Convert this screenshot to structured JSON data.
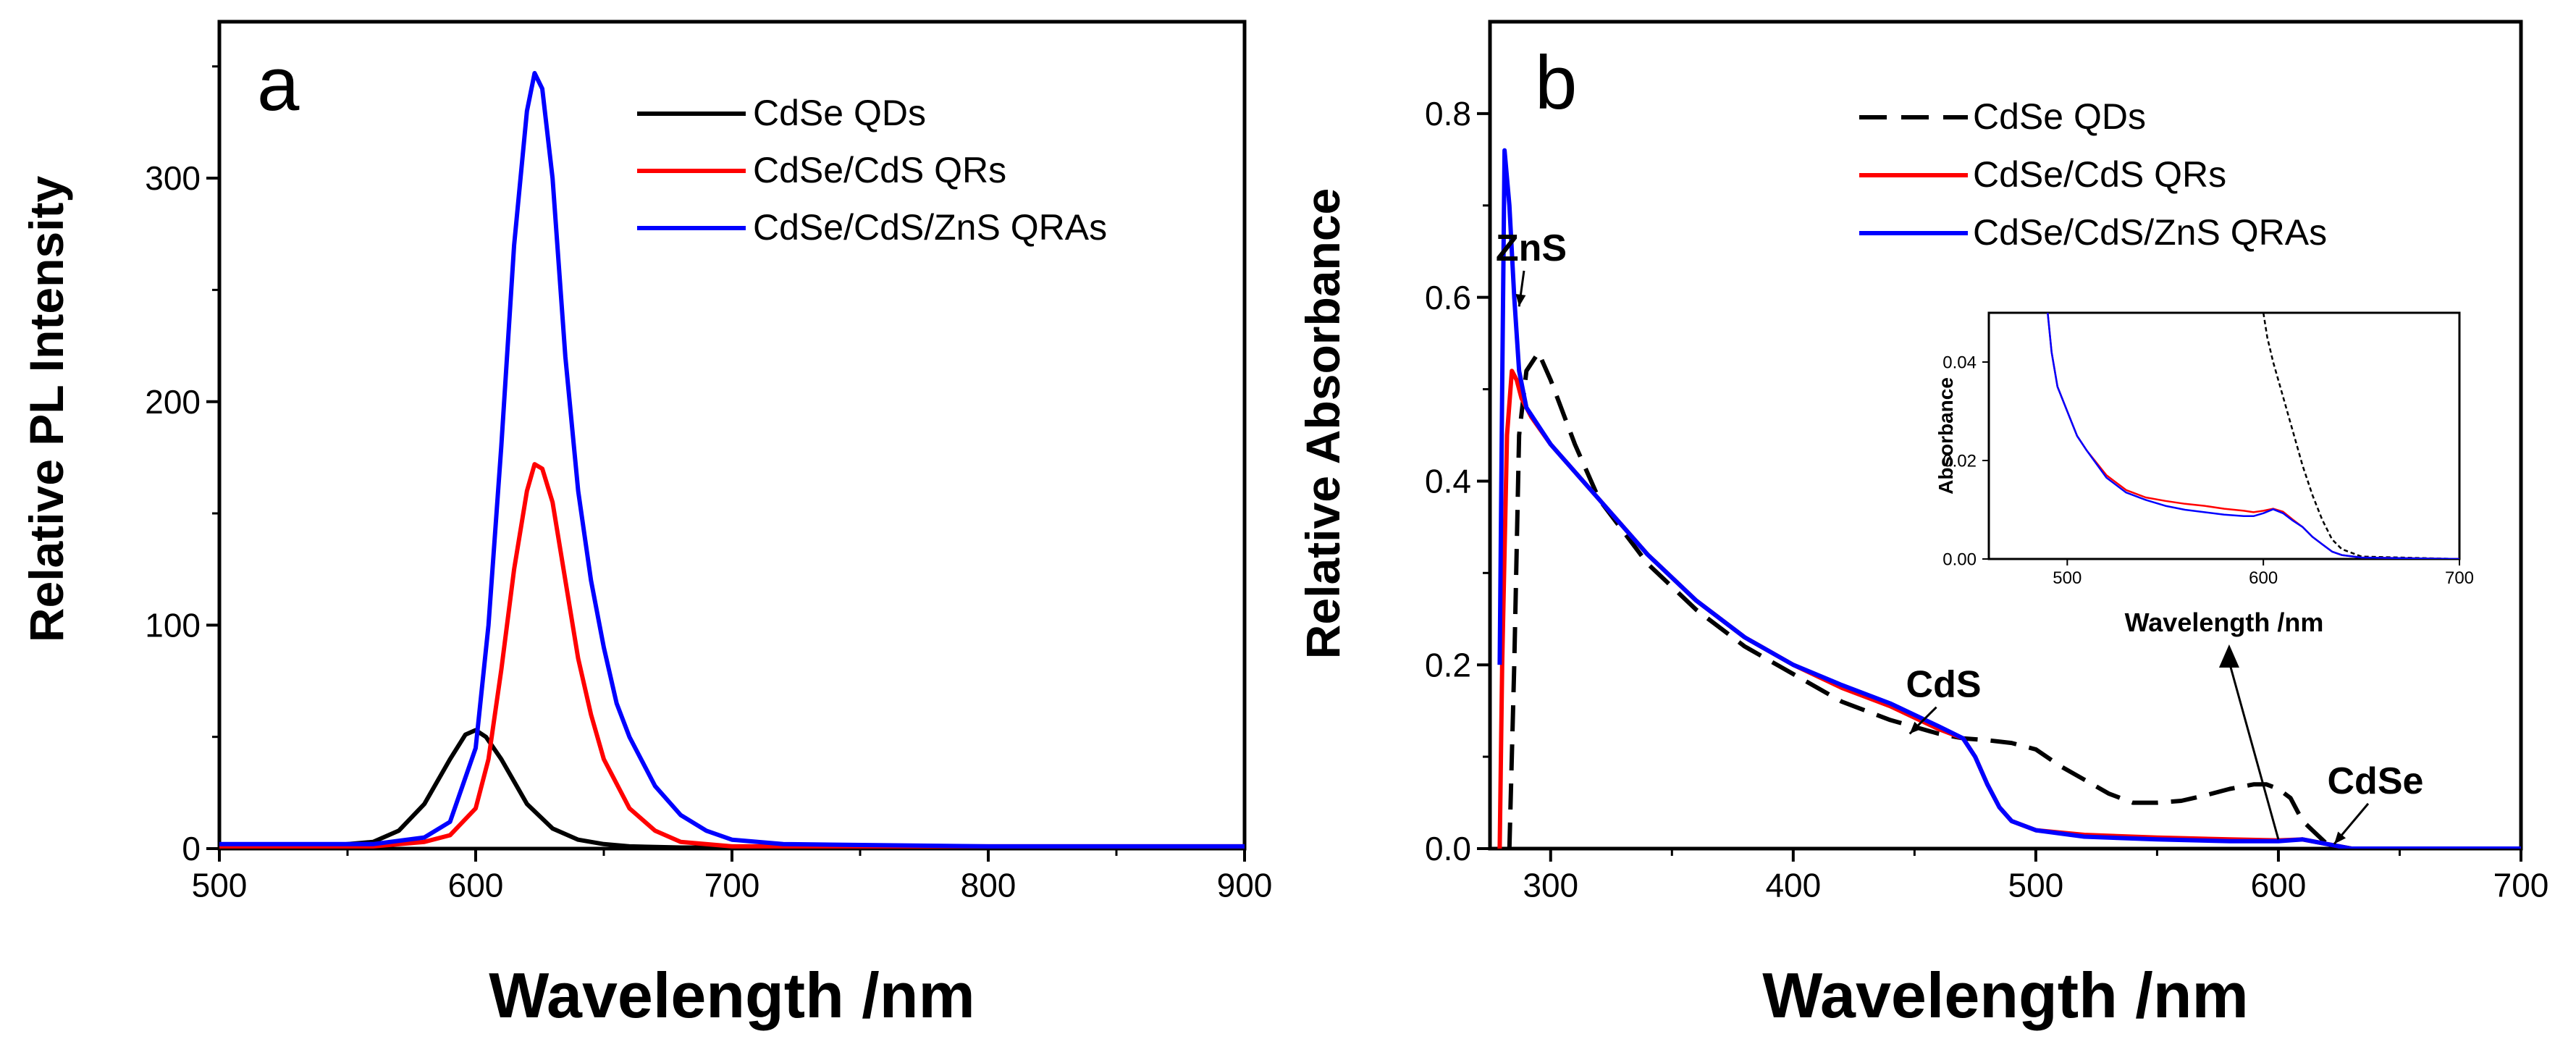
{
  "colors": {
    "black": "#000000",
    "red": "#ff0000",
    "blue": "#0000ff",
    "axis": "#000000"
  },
  "chart_data": [
    {
      "id": "a",
      "type": "line",
      "panel_label": "a",
      "xlabel": "Wavelength /nm",
      "ylabel": "Relative PL Intensity",
      "xlim": [
        500,
        900
      ],
      "ylim": [
        0,
        370
      ],
      "xticks": [
        "500",
        "600",
        "700",
        "800",
        "900"
      ],
      "yticks": [
        "0",
        "100",
        "200",
        "300"
      ],
      "legend": "top-right",
      "series": [
        {
          "name": "CdSe QDs",
          "color": "#000000",
          "dash": false,
          "x": [
            500,
            540,
            560,
            570,
            580,
            590,
            596,
            600,
            604,
            610,
            615,
            620,
            630,
            640,
            650,
            660,
            680,
            700,
            800,
            900
          ],
          "y": [
            1,
            1,
            3,
            8,
            20,
            40,
            51,
            53,
            50,
            40,
            30,
            20,
            9,
            4,
            2,
            1,
            0.5,
            0.5,
            0.5,
            0.5
          ]
        },
        {
          "name": "CdSe/CdS QRs",
          "color": "#ff0000",
          "dash": false,
          "x": [
            500,
            560,
            580,
            590,
            600,
            605,
            610,
            615,
            620,
            623,
            626,
            630,
            635,
            640,
            645,
            650,
            660,
            670,
            680,
            700,
            800,
            900
          ],
          "y": [
            1,
            1,
            3,
            6,
            18,
            40,
            80,
            125,
            160,
            172,
            170,
            155,
            120,
            85,
            60,
            40,
            18,
            8,
            3,
            1,
            1,
            1
          ]
        },
        {
          "name": "CdSe/CdS/ZnS QRAs",
          "color": "#0000ff",
          "dash": false,
          "x": [
            500,
            560,
            580,
            590,
            600,
            605,
            610,
            615,
            620,
            623,
            626,
            630,
            635,
            640,
            645,
            650,
            655,
            660,
            670,
            680,
            690,
            700,
            720,
            800,
            900
          ],
          "y": [
            2,
            2,
            5,
            12,
            45,
            100,
            180,
            270,
            330,
            347,
            340,
            300,
            220,
            160,
            120,
            90,
            65,
            50,
            28,
            15,
            8,
            4,
            2,
            1,
            1
          ]
        }
      ]
    },
    {
      "id": "b",
      "type": "line",
      "panel_label": "b",
      "xlabel": "Wavelength /nm",
      "ylabel": "Relative Absorbance",
      "xlim": [
        275,
        700
      ],
      "ylim": [
        0,
        0.9
      ],
      "xticks": [
        "300",
        "400",
        "500",
        "600",
        "700"
      ],
      "yticks": [
        "0.0",
        "0.2",
        "0.4",
        "0.6",
        "0.8"
      ],
      "legend": "top-right",
      "series": [
        {
          "name": "CdSe QDs",
          "color": "#000000",
          "dash": true,
          "x": [
            283,
            285,
            287,
            290,
            295,
            300,
            310,
            320,
            340,
            360,
            380,
            400,
            420,
            440,
            460,
            470,
            480,
            490,
            500,
            510,
            520,
            530,
            540,
            550,
            560,
            570,
            580,
            590,
            595,
            600,
            605,
            610,
            620,
            630,
            640,
            700
          ],
          "y": [
            0,
            0.2,
            0.45,
            0.52,
            0.54,
            0.51,
            0.44,
            0.38,
            0.31,
            0.26,
            0.22,
            0.19,
            0.16,
            0.14,
            0.125,
            0.12,
            0.118,
            0.115,
            0.108,
            0.09,
            0.075,
            0.06,
            0.05,
            0.05,
            0.052,
            0.058,
            0.065,
            0.07,
            0.07,
            0.065,
            0.055,
            0.03,
            0.005,
            0,
            0,
            0
          ]
        },
        {
          "name": "CdSe/CdS QRs",
          "color": "#ff0000",
          "dash": false,
          "x": [
            279,
            280,
            282,
            284,
            286,
            288,
            292,
            300,
            320,
            340,
            360,
            380,
            400,
            420,
            440,
            460,
            470,
            475,
            480,
            485,
            490,
            500,
            520,
            550,
            580,
            600,
            610,
            620,
            630,
            640,
            700
          ],
          "y": [
            0,
            0.2,
            0.45,
            0.52,
            0.51,
            0.49,
            0.47,
            0.44,
            0.38,
            0.32,
            0.27,
            0.23,
            0.2,
            0.175,
            0.155,
            0.13,
            0.12,
            0.1,
            0.07,
            0.045,
            0.03,
            0.02,
            0.015,
            0.012,
            0.01,
            0.009,
            0.01,
            0.005,
            0,
            0,
            0
          ]
        },
        {
          "name": "CdSe/CdS/ZnS QRAs",
          "color": "#0000ff",
          "dash": false,
          "x": [
            279,
            280,
            281,
            283,
            285,
            287,
            290,
            295,
            300,
            320,
            340,
            360,
            380,
            400,
            420,
            440,
            460,
            470,
            475,
            480,
            485,
            490,
            500,
            520,
            550,
            580,
            600,
            610,
            620,
            630,
            640,
            700
          ],
          "y": [
            0.2,
            0.5,
            0.76,
            0.7,
            0.6,
            0.52,
            0.48,
            0.46,
            0.44,
            0.38,
            0.32,
            0.27,
            0.23,
            0.2,
            0.178,
            0.158,
            0.133,
            0.12,
            0.1,
            0.07,
            0.045,
            0.03,
            0.02,
            0.013,
            0.01,
            0.008,
            0.008,
            0.01,
            0.005,
            0,
            0,
            0
          ]
        }
      ],
      "annotations": [
        {
          "text": "ZnS",
          "x": 292,
          "y": 0.64,
          "arrow_to": [
            287,
            0.59
          ]
        },
        {
          "text": "CdS",
          "x": 462,
          "y": 0.165,
          "arrow_to": [
            448,
            0.125
          ]
        },
        {
          "text": "CdSe",
          "x": 640,
          "y": 0.06,
          "arrow_to": [
            623,
            0.005
          ]
        }
      ],
      "inset": {
        "xlabel": "Wavelength /nm",
        "ylabel": "Absorbance",
        "xlim": [
          460,
          700
        ],
        "ylim": [
          0,
          0.05
        ],
        "xticks": [
          "500",
          "600",
          "700"
        ],
        "yticks": [
          "0.00",
          "0.02",
          "0.04"
        ],
        "arrow_from": [
          600,
          0.01
        ],
        "series": [
          {
            "name": "CdSe QDs",
            "color": "#000000",
            "dash": true,
            "x": [
              600,
              602,
              605,
              610,
              615,
              620,
              625,
              630,
              635,
              640,
              650,
              700
            ],
            "y": [
              0.05,
              0.045,
              0.04,
              0.033,
              0.026,
              0.019,
              0.013,
              0.008,
              0.004,
              0.002,
              0.0005,
              0
            ]
          },
          {
            "name": "CdSe/CdS QRs",
            "color": "#ff0000",
            "dash": false,
            "x": [
              490,
              492,
              495,
              500,
              505,
              510,
              520,
              530,
              540,
              550,
              560,
              570,
              580,
              590,
              595,
              600,
              605,
              610,
              615,
              620,
              625,
              630,
              635,
              640,
              650,
              700
            ],
            "y": [
              0.05,
              0.042,
              0.035,
              0.03,
              0.025,
              0.022,
              0.017,
              0.014,
              0.0125,
              0.0118,
              0.0112,
              0.0108,
              0.0102,
              0.0098,
              0.0095,
              0.0098,
              0.0102,
              0.0096,
              0.008,
              0.0065,
              0.0045,
              0.003,
              0.0015,
              0.0008,
              0.0003,
              0
            ]
          },
          {
            "name": "CdSe/CdS/ZnS QRAs",
            "color": "#0000ff",
            "dash": false,
            "x": [
              490,
              492,
              495,
              500,
              505,
              510,
              520,
              530,
              540,
              550,
              560,
              570,
              580,
              590,
              595,
              600,
              605,
              610,
              615,
              620,
              625,
              630,
              635,
              640,
              650,
              700
            ],
            "y": [
              0.05,
              0.042,
              0.035,
              0.03,
              0.025,
              0.022,
              0.0165,
              0.0135,
              0.012,
              0.0108,
              0.01,
              0.0095,
              0.009,
              0.0087,
              0.0087,
              0.0093,
              0.0101,
              0.0093,
              0.0078,
              0.0065,
              0.0045,
              0.003,
              0.0015,
              0.0008,
              0.0003,
              0
            ]
          }
        ]
      }
    }
  ]
}
